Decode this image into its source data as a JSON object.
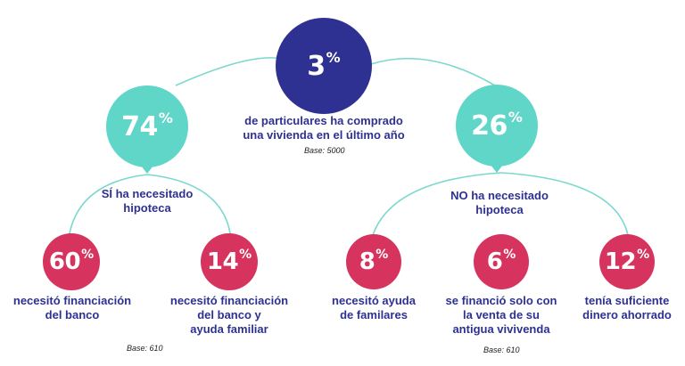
{
  "colors": {
    "navy": "#2e3192",
    "teal": "#5fd6c8",
    "crimson": "#d6335e",
    "line": "#7ad8cf"
  },
  "top": {
    "value": "3",
    "unit": "%",
    "description_line1": "de particulares ha comprado",
    "description_line2": "una vivienda en el último año",
    "base": "Base: 5000"
  },
  "left_branch": {
    "value": "74",
    "unit": "%",
    "label_line1": "SÍ ha necesitado",
    "label_line2": "hipoteca",
    "base": "Base: 610",
    "children": [
      {
        "value": "60",
        "unit": "%",
        "line1": "necesitó financiación",
        "line2": "del banco",
        "line3": ""
      },
      {
        "value": "14",
        "unit": "%",
        "line1": "necesitó financiación",
        "line2": "del banco y",
        "line3": "ayuda familiar"
      }
    ]
  },
  "right_branch": {
    "value": "26",
    "unit": "%",
    "label_line1": "NO ha necesitado",
    "label_line2": "hipoteca",
    "base": "Base: 610",
    "children": [
      {
        "value": "8",
        "unit": "%",
        "line1": "necesitó ayuda",
        "line2": "de familares",
        "line3": ""
      },
      {
        "value": "6",
        "unit": "%",
        "line1": "se financió solo con",
        "line2": "la venta de su",
        "line3": "antigua vivivenda"
      },
      {
        "value": "12",
        "unit": "%",
        "line1": "tenía suficiente",
        "line2": "dinero ahorrado",
        "line3": ""
      }
    ]
  }
}
